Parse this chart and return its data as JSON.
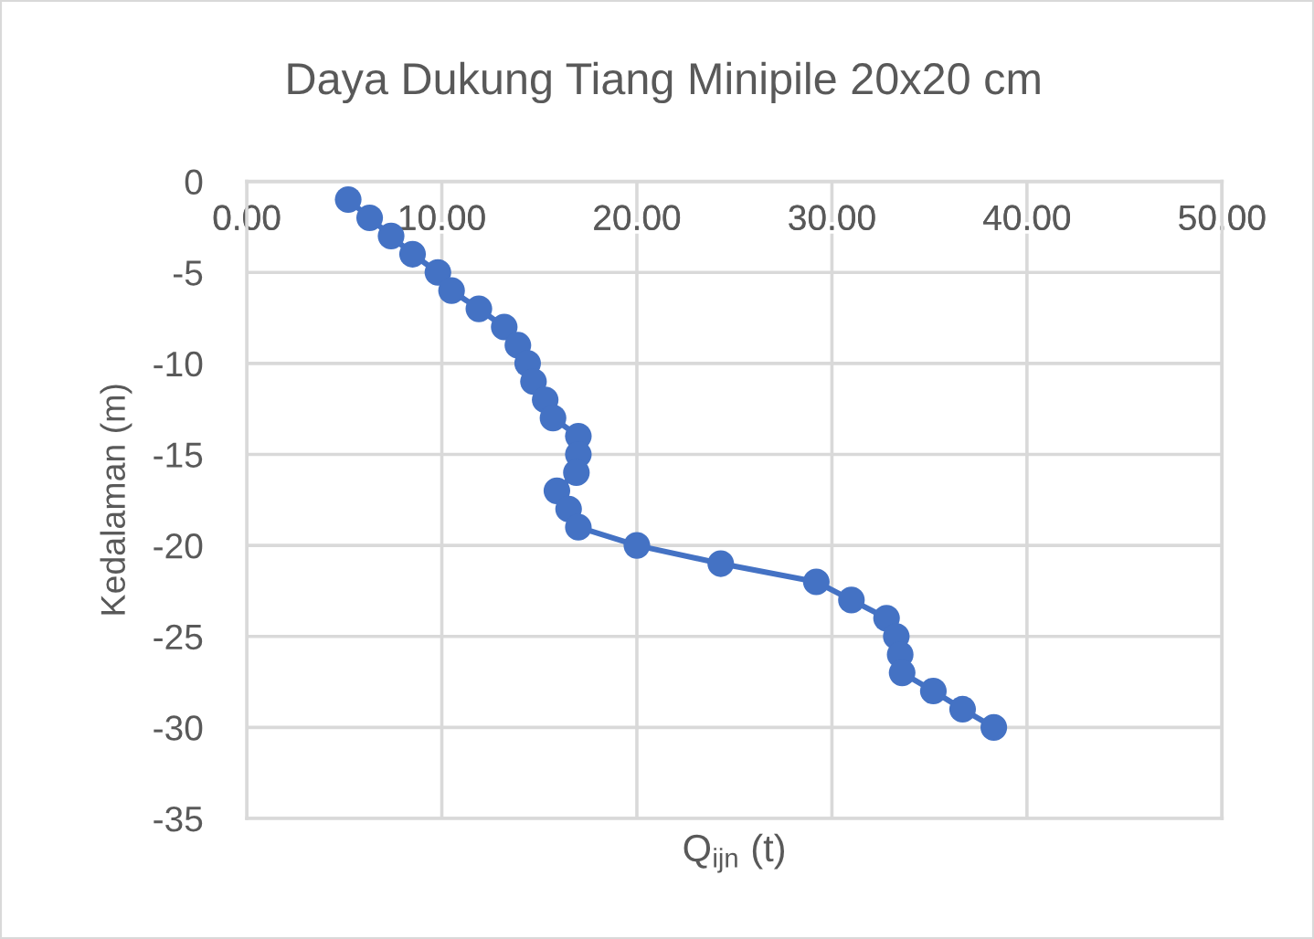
{
  "chart_data": {
    "type": "line",
    "title": "Daya Dukung Tiang Minipile 20x20 cm",
    "xlabel": "Q$_{ijn}$ (t)",
    "ylabel": "Kedalaman (m)",
    "series": [
      {
        "color": "#4472c4",
        "x": [
          5.2,
          6.3,
          7.4,
          8.5,
          9.8,
          10.5,
          11.9,
          13.2,
          13.9,
          14.4,
          14.7,
          15.3,
          15.7,
          17.0,
          17.0,
          16.9,
          15.9,
          16.5,
          17.0,
          20.0,
          24.3,
          29.2,
          31.0,
          32.8,
          33.3,
          33.5,
          33.6,
          35.2,
          36.7,
          38.3
        ],
        "values": [
          -1,
          -2,
          -3,
          -4,
          -5,
          -6,
          -7,
          -8,
          -9,
          -10,
          -11,
          -12,
          -13,
          -14,
          -15,
          -16,
          -17,
          -18,
          -19,
          -20,
          -21,
          -22,
          -23,
          -24,
          -25,
          -26,
          -27,
          -28,
          -29,
          -30
        ]
      }
    ],
    "xlim": [
      0,
      50
    ],
    "xticks": [
      {
        "value": 0,
        "label": "0.00"
      },
      {
        "value": 10,
        "label": "10.00"
      },
      {
        "value": 20,
        "label": "20.00"
      },
      {
        "value": 30,
        "label": "30.00"
      },
      {
        "value": 40,
        "label": "40.00"
      },
      {
        "value": 50,
        "label": "50.00"
      }
    ],
    "ylim": [
      -35,
      0
    ],
    "yticks": [
      -35,
      -30,
      -25,
      -20,
      -15,
      -10,
      -5,
      0
    ],
    "grid": true,
    "marker": "circle",
    "line_style": "solid"
  }
}
